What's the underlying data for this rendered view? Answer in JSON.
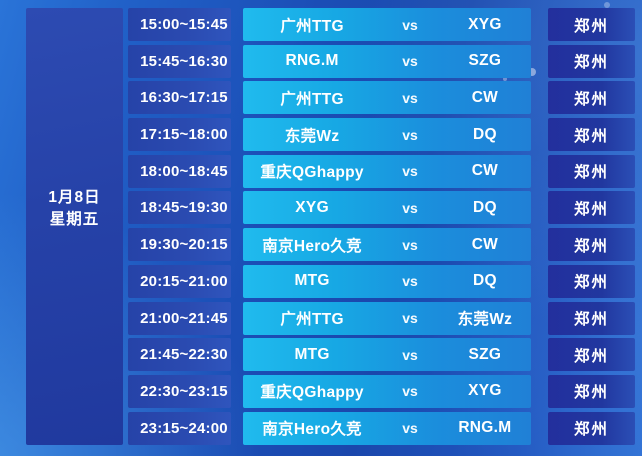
{
  "schedule": {
    "date": {
      "line1": "1月8日",
      "line2": "星期五"
    },
    "vs_label": "vs",
    "matches": [
      {
        "time": "15:00~15:45",
        "team1": "广州TTG",
        "team2": "XYG",
        "venue": "郑州"
      },
      {
        "time": "15:45~16:30",
        "team1": "RNG.M",
        "team2": "SZG",
        "venue": "郑州"
      },
      {
        "time": "16:30~17:15",
        "team1": "广州TTG",
        "team2": "CW",
        "venue": "郑州"
      },
      {
        "time": "17:15~18:00",
        "team1": "东莞Wz",
        "team2": "DQ",
        "venue": "郑州"
      },
      {
        "time": "18:00~18:45",
        "team1": "重庆QGhappy",
        "team2": "CW",
        "venue": "郑州"
      },
      {
        "time": "18:45~19:30",
        "team1": "XYG",
        "team2": "DQ",
        "venue": "郑州"
      },
      {
        "time": "19:30~20:15",
        "team1": "南京Hero久竞",
        "team2": "CW",
        "venue": "郑州"
      },
      {
        "time": "20:15~21:00",
        "team1": "MTG",
        "team2": "DQ",
        "venue": "郑州"
      },
      {
        "time": "21:00~21:45",
        "team1": "广州TTG",
        "team2": "东莞Wz",
        "venue": "郑州"
      },
      {
        "time": "21:45~22:30",
        "team1": "MTG",
        "team2": "SZG",
        "venue": "郑州"
      },
      {
        "time": "22:30~23:15",
        "team1": "重庆QGhappy",
        "team2": "XYG",
        "venue": "郑州"
      },
      {
        "time": "23:15~24:00",
        "team1": "南京Hero久竞",
        "team2": "RNG.M",
        "venue": "郑州"
      }
    ]
  },
  "colors": {
    "background_bright": "#2a74d8",
    "background_dark": "#1a47ac",
    "date_cell": "#2642a8",
    "time_cell": "#2a4ab0",
    "match_cell_start": "#20bbee",
    "match_cell_end": "#2080d6",
    "venue_cell": "#21379f",
    "text": "#ffffff"
  }
}
